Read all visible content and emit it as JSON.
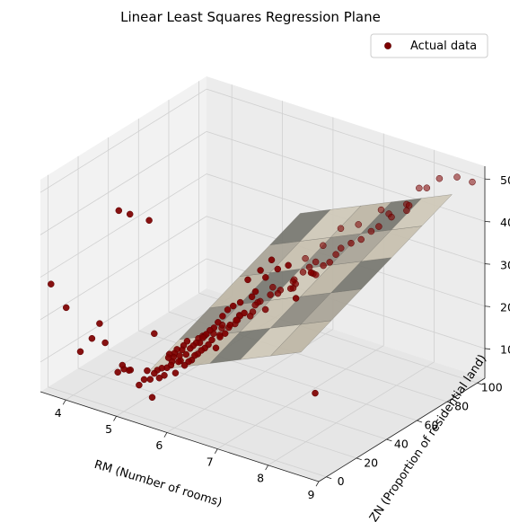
{
  "chart_data": {
    "type": "scatter",
    "projection": "3d",
    "title": "Linear Least Squares Regression Plane",
    "xlabel": "RM (Number of rooms)",
    "ylabel": "ZN (Proportion of residential land)",
    "zlabel": "",
    "xlim": [
      3.5,
      9.0
    ],
    "ylim": [
      -5,
      105
    ],
    "zlim": [
      3,
      53
    ],
    "x_ticks": [
      "4",
      "5",
      "6",
      "7",
      "8",
      "9"
    ],
    "y_ticks": [
      "0",
      "20",
      "40",
      "60",
      "80",
      "100"
    ],
    "z_ticks": [
      "10",
      "20",
      "30",
      "40",
      "50"
    ],
    "grid": true,
    "legend": {
      "position": "top-right",
      "entries": [
        "Actual data"
      ]
    },
    "series": [
      {
        "name": "Actual data",
        "marker": "circle",
        "color": "#7f0000",
        "points": [
          [
            3.56,
            0,
            27.5
          ],
          [
            3.86,
            0,
            23.1
          ],
          [
            4.14,
            0,
            13.8
          ],
          [
            4.37,
            0,
            17.8
          ],
          [
            4.52,
            0,
            21.9
          ],
          [
            4.63,
            0,
            17.8
          ],
          [
            4.88,
            0,
            11.8
          ],
          [
            4.97,
            0,
            13.8
          ],
          [
            5.0,
            0,
            13.0
          ],
          [
            5.13,
            0,
            13.3
          ],
          [
            5.3,
            0,
            10.4
          ],
          [
            5.4,
            0,
            12.1
          ],
          [
            5.46,
            0,
            14.4
          ],
          [
            5.52,
            0,
            12.6
          ],
          [
            5.56,
            0,
            8.5
          ],
          [
            5.6,
            0,
            14.3
          ],
          [
            5.66,
            0,
            15.3
          ],
          [
            5.7,
            0,
            13.6
          ],
          [
            5.75,
            0,
            16.1
          ],
          [
            5.8,
            0,
            14.6
          ],
          [
            5.85,
            0,
            16.6
          ],
          [
            5.88,
            0,
            19.1
          ],
          [
            5.9,
            0,
            20.0
          ],
          [
            5.93,
            0,
            17.5
          ],
          [
            5.95,
            0,
            18.4
          ],
          [
            5.98,
            0,
            19.6
          ],
          [
            6.0,
            0,
            20.6
          ],
          [
            6.02,
            0,
            16.0
          ],
          [
            6.05,
            0,
            21.7
          ],
          [
            6.08,
            0,
            18.9
          ],
          [
            6.1,
            0,
            20.4
          ],
          [
            6.12,
            0,
            19.3
          ],
          [
            6.15,
            0,
            22.0
          ],
          [
            6.18,
            0,
            23.1
          ],
          [
            6.2,
            0,
            18.5
          ],
          [
            6.23,
            0,
            21.2
          ],
          [
            6.25,
            0,
            24.4
          ],
          [
            6.28,
            0,
            19.7
          ],
          [
            6.31,
            0,
            22.9
          ],
          [
            6.34,
            0,
            20.3
          ],
          [
            6.37,
            0,
            23.8
          ],
          [
            6.4,
            0,
            21.6
          ],
          [
            6.43,
            0,
            24.7
          ],
          [
            6.46,
            0,
            22.2
          ],
          [
            6.5,
            0,
            25.0
          ],
          [
            6.53,
            0,
            23.3
          ],
          [
            6.56,
            0,
            26.4
          ],
          [
            6.6,
            0,
            24.1
          ],
          [
            6.63,
            0,
            27.5
          ],
          [
            6.67,
            0,
            25.2
          ],
          [
            6.7,
            0,
            28.7
          ],
          [
            6.74,
            0,
            26.6
          ],
          [
            6.78,
            0,
            29.6
          ],
          [
            6.82,
            0,
            25.0
          ],
          [
            6.86,
            0,
            31.2
          ],
          [
            6.9,
            0,
            27.9
          ],
          [
            6.95,
            0,
            33.0
          ],
          [
            7.0,
            0,
            29.1
          ],
          [
            7.05,
            0,
            34.9
          ],
          [
            7.1,
            0,
            31.5
          ],
          [
            7.16,
            0,
            36.2
          ],
          [
            7.22,
            0,
            33.1
          ],
          [
            7.3,
            0,
            37.6
          ],
          [
            7.38,
            0,
            35.4
          ],
          [
            7.45,
            0,
            43.5
          ],
          [
            7.53,
            0,
            39.8
          ],
          [
            7.6,
            0,
            41.3
          ],
          [
            7.7,
            0,
            46.7
          ],
          [
            7.8,
            0,
            45.4
          ],
          [
            7.92,
            0,
            50.0
          ],
          [
            8.04,
            0,
            48.3
          ],
          [
            8.25,
            0,
            50.0
          ],
          [
            8.4,
            0,
            42.8
          ],
          [
            8.7,
            0,
            50.0
          ],
          [
            8.78,
            0,
            21.9
          ],
          [
            5.5,
            0,
            50.0
          ],
          [
            5.6,
            0,
            23.7
          ],
          [
            5.12,
            0,
            50.0
          ],
          [
            4.9,
            0,
            50.0
          ],
          [
            5.1,
            0,
            13.1
          ],
          [
            6.1,
            12.5,
            21.7
          ],
          [
            6.4,
            12.5,
            24.0
          ],
          [
            6.7,
            12.5,
            26.6
          ],
          [
            6.0,
            20,
            20.3
          ],
          [
            6.3,
            20,
            21.6
          ],
          [
            6.6,
            20,
            25.4
          ],
          [
            6.9,
            20,
            28.4
          ],
          [
            7.2,
            20,
            31.1
          ],
          [
            5.9,
            22,
            19.4
          ],
          [
            6.2,
            25,
            22.5
          ],
          [
            6.5,
            25,
            24.8
          ],
          [
            6.8,
            25,
            27.9
          ],
          [
            6.1,
            28,
            20.7
          ],
          [
            6.4,
            30,
            24.3
          ],
          [
            6.7,
            30,
            28.0
          ],
          [
            7.0,
            30,
            31.6
          ],
          [
            7.4,
            30,
            34.6
          ],
          [
            6.3,
            33,
            23.4
          ],
          [
            6.6,
            35,
            27.1
          ],
          [
            7.0,
            35,
            30.8
          ],
          [
            7.3,
            35,
            33.2
          ],
          [
            6.5,
            40,
            25.9
          ],
          [
            6.9,
            40,
            30.1
          ],
          [
            7.2,
            40,
            32.7
          ],
          [
            7.6,
            40,
            36.4
          ],
          [
            6.6,
            45,
            28.5
          ],
          [
            7.0,
            45,
            31.4
          ],
          [
            7.4,
            45,
            34.8
          ],
          [
            6.8,
            52.5,
            29.4
          ],
          [
            7.1,
            52.5,
            33.5
          ],
          [
            7.5,
            52.5,
            36.2
          ],
          [
            6.9,
            55,
            31.0
          ],
          [
            7.3,
            55,
            34.1
          ],
          [
            7.0,
            60,
            32.7
          ],
          [
            7.4,
            60,
            36.0
          ],
          [
            7.7,
            60,
            39.8
          ],
          [
            7.2,
            70,
            34.5
          ],
          [
            7.6,
            70,
            38.1
          ],
          [
            7.8,
            75,
            40.8
          ],
          [
            7.5,
            80,
            37.4
          ],
          [
            7.9,
            80,
            42.3
          ],
          [
            8.2,
            80,
            45.0
          ],
          [
            7.7,
            85,
            41.2
          ],
          [
            8.1,
            85,
            44.7
          ],
          [
            7.9,
            90,
            43.1
          ],
          [
            8.3,
            90,
            48.5
          ],
          [
            8.0,
            95,
            46.2
          ],
          [
            8.4,
            95,
            50.0
          ],
          [
            8.6,
            100,
            50.0
          ],
          [
            8.9,
            100,
            50.0
          ],
          [
            6.2,
            80,
            26.0
          ],
          [
            6.6,
            90,
            32.4
          ],
          [
            6.8,
            95,
            33.0
          ],
          [
            7.1,
            100,
            36.5
          ],
          [
            6.4,
            85,
            28.7
          ]
        ]
      }
    ],
    "surface": {
      "label": "regression plane",
      "color": "#b0aa9b",
      "x_range": [
        5.5,
        8.5
      ],
      "y_range": [
        0,
        100
      ],
      "z_corners": [
        [
          5.5,
          0,
          14.5
        ],
        [
          8.5,
          0,
          30.5
        ],
        [
          8.5,
          100,
          45.5
        ],
        [
          5.5,
          100,
          29.5
        ]
      ]
    }
  }
}
